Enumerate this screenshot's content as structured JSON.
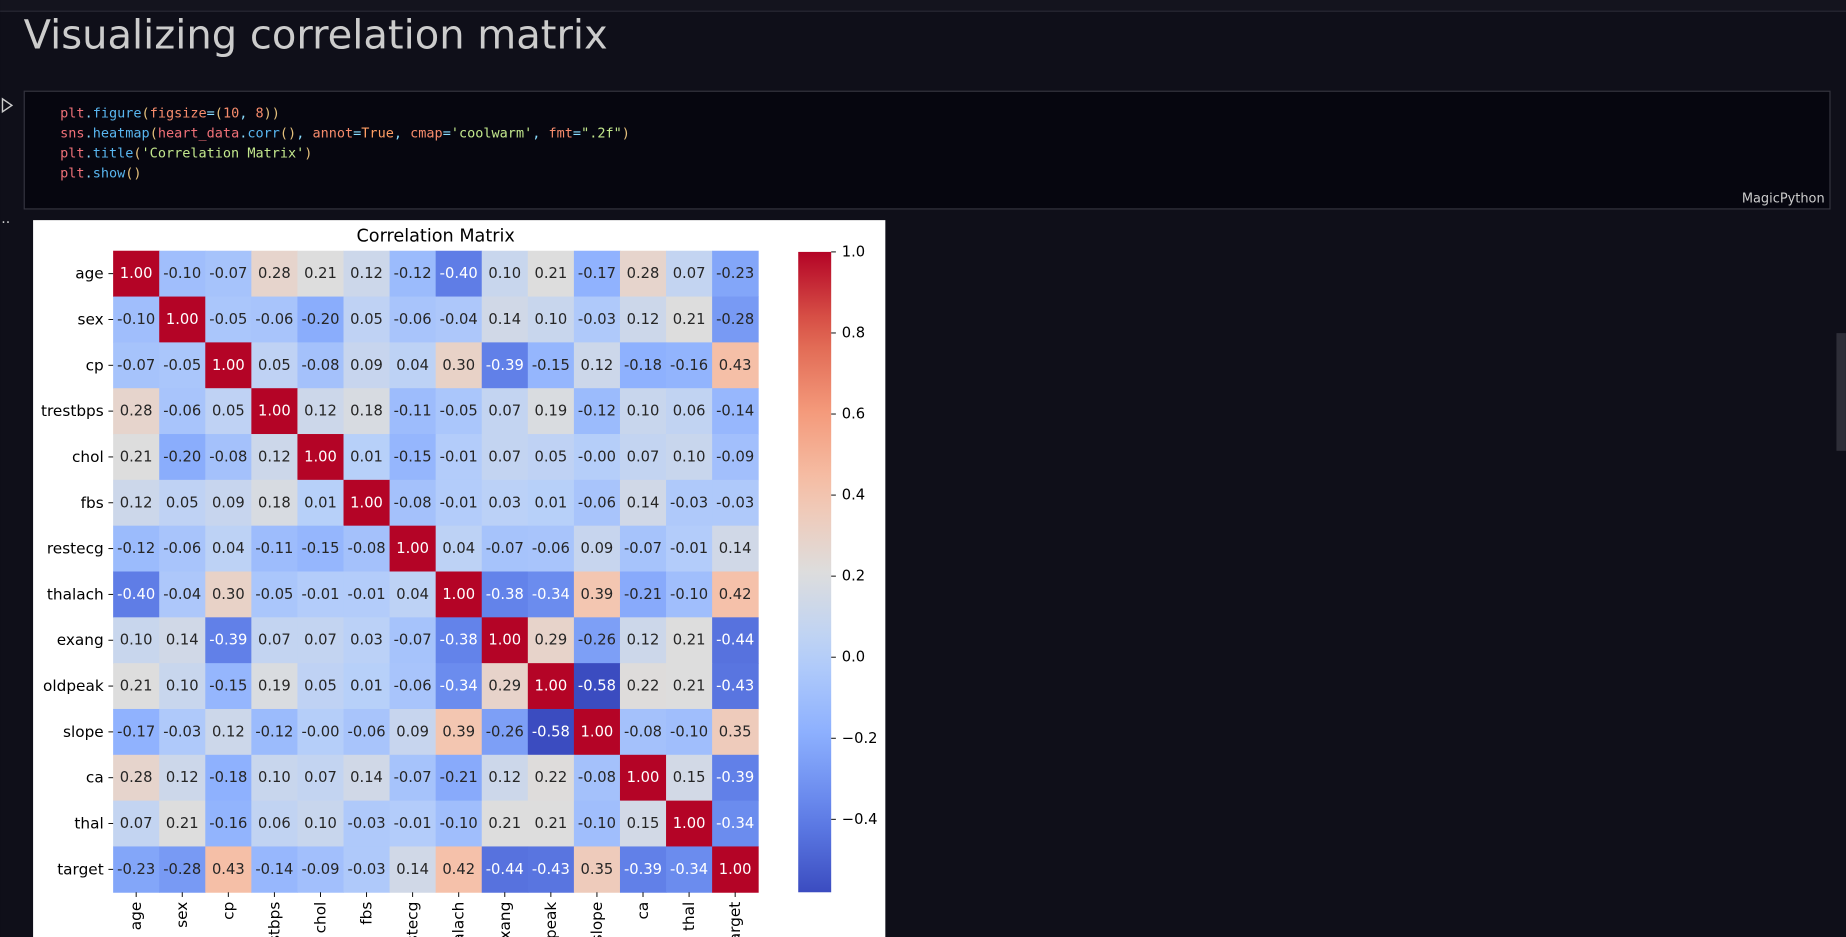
{
  "notebook": {
    "heading": "Visualizing correlation matrix",
    "cell": {
      "lines": [
        "plt.figure(figsize=(10, 8))",
        "sns.heatmap(heart_data.corr(), annot=True, cmap='coolwarm', fmt=\".2f\")",
        "plt.title('Correlation Matrix')",
        "plt.show()"
      ],
      "language": "MagicPython"
    }
  },
  "chart_data": {
    "type": "heatmap",
    "title": "Correlation Matrix",
    "cmap": "coolwarm",
    "categories": [
      "age",
      "sex",
      "cp",
      "trestbps",
      "chol",
      "fbs",
      "restecg",
      "thalach",
      "exang",
      "oldpeak",
      "slope",
      "ca",
      "thal",
      "target"
    ],
    "rows": [
      {
        "values": [
          1.0,
          -0.1,
          -0.07,
          0.28,
          0.21,
          0.12,
          -0.12,
          -0.4,
          0.1,
          0.21,
          -0.17,
          0.28,
          0.07,
          -0.23
        ],
        "value_labels": [
          "1.00",
          "-0.10",
          "-0.07",
          "0.28",
          "0.21",
          "0.12",
          "-0.12",
          "-0.40",
          "0.10",
          "0.21",
          "-0.17",
          "0.28",
          "0.07",
          "-0.23"
        ]
      },
      {
        "values": [
          -0.1,
          1.0,
          -0.05,
          -0.06,
          -0.2,
          0.05,
          -0.06,
          -0.04,
          0.14,
          0.1,
          -0.03,
          0.12,
          0.21,
          -0.28
        ],
        "value_labels": [
          "-0.10",
          "1.00",
          "-0.05",
          "-0.06",
          "-0.20",
          "0.05",
          "-0.06",
          "-0.04",
          "0.14",
          "0.10",
          "-0.03",
          "0.12",
          "0.21",
          "-0.28"
        ]
      },
      {
        "values": [
          -0.07,
          -0.05,
          1.0,
          0.05,
          -0.08,
          0.09,
          0.04,
          0.3,
          -0.39,
          -0.15,
          0.12,
          -0.18,
          -0.16,
          0.43
        ],
        "value_labels": [
          "-0.07",
          "-0.05",
          "1.00",
          "0.05",
          "-0.08",
          "0.09",
          "0.04",
          "0.30",
          "-0.39",
          "-0.15",
          "0.12",
          "-0.18",
          "-0.16",
          "0.43"
        ]
      },
      {
        "values": [
          0.28,
          -0.06,
          0.05,
          1.0,
          0.12,
          0.18,
          -0.11,
          -0.05,
          0.07,
          0.19,
          -0.12,
          0.1,
          0.06,
          -0.14
        ],
        "value_labels": [
          "0.28",
          "-0.06",
          "0.05",
          "1.00",
          "0.12",
          "0.18",
          "-0.11",
          "-0.05",
          "0.07",
          "0.19",
          "-0.12",
          "0.10",
          "0.06",
          "-0.14"
        ]
      },
      {
        "values": [
          0.21,
          -0.2,
          -0.08,
          0.12,
          1.0,
          0.01,
          -0.15,
          -0.01,
          0.07,
          0.05,
          -0.0,
          0.07,
          0.1,
          -0.09
        ],
        "value_labels": [
          "0.21",
          "-0.20",
          "-0.08",
          "0.12",
          "1.00",
          "0.01",
          "-0.15",
          "-0.01",
          "0.07",
          "0.05",
          "-0.00",
          "0.07",
          "0.10",
          "-0.09"
        ]
      },
      {
        "values": [
          0.12,
          0.05,
          0.09,
          0.18,
          0.01,
          1.0,
          -0.08,
          -0.01,
          0.03,
          0.01,
          -0.06,
          0.14,
          -0.03,
          -0.03
        ],
        "value_labels": [
          "0.12",
          "0.05",
          "0.09",
          "0.18",
          "0.01",
          "1.00",
          "-0.08",
          "-0.01",
          "0.03",
          "0.01",
          "-0.06",
          "0.14",
          "-0.03",
          "-0.03"
        ]
      },
      {
        "values": [
          -0.12,
          -0.06,
          0.04,
          -0.11,
          -0.15,
          -0.08,
          1.0,
          0.04,
          -0.07,
          -0.06,
          0.09,
          -0.07,
          -0.01,
          0.14
        ],
        "value_labels": [
          "-0.12",
          "-0.06",
          "0.04",
          "-0.11",
          "-0.15",
          "-0.08",
          "1.00",
          "0.04",
          "-0.07",
          "-0.06",
          "0.09",
          "-0.07",
          "-0.01",
          "0.14"
        ]
      },
      {
        "values": [
          -0.4,
          -0.04,
          0.3,
          -0.05,
          -0.01,
          -0.01,
          0.04,
          1.0,
          -0.38,
          -0.34,
          0.39,
          -0.21,
          -0.1,
          0.42
        ],
        "value_labels": [
          "-0.40",
          "-0.04",
          "0.30",
          "-0.05",
          "-0.01",
          "-0.01",
          "0.04",
          "1.00",
          "-0.38",
          "-0.34",
          "0.39",
          "-0.21",
          "-0.10",
          "0.42"
        ]
      },
      {
        "values": [
          0.1,
          0.14,
          -0.39,
          0.07,
          0.07,
          0.03,
          -0.07,
          -0.38,
          1.0,
          0.29,
          -0.26,
          0.12,
          0.21,
          -0.44
        ],
        "value_labels": [
          "0.10",
          "0.14",
          "-0.39",
          "0.07",
          "0.07",
          "0.03",
          "-0.07",
          "-0.38",
          "1.00",
          "0.29",
          "-0.26",
          "0.12",
          "0.21",
          "-0.44"
        ]
      },
      {
        "values": [
          0.21,
          0.1,
          -0.15,
          0.19,
          0.05,
          0.01,
          -0.06,
          -0.34,
          0.29,
          1.0,
          -0.58,
          0.22,
          0.21,
          -0.43
        ],
        "value_labels": [
          "0.21",
          "0.10",
          "-0.15",
          "0.19",
          "0.05",
          "0.01",
          "-0.06",
          "-0.34",
          "0.29",
          "1.00",
          "-0.58",
          "0.22",
          "0.21",
          "-0.43"
        ]
      },
      {
        "values": [
          -0.17,
          -0.03,
          0.12,
          -0.12,
          -0.0,
          -0.06,
          0.09,
          0.39,
          -0.26,
          -0.58,
          1.0,
          -0.08,
          -0.1,
          0.35
        ],
        "value_labels": [
          "-0.17",
          "-0.03",
          "0.12",
          "-0.12",
          "-0.00",
          "-0.06",
          "0.09",
          "0.39",
          "-0.26",
          "-0.58",
          "1.00",
          "-0.08",
          "-0.10",
          "0.35"
        ]
      },
      {
        "values": [
          0.28,
          0.12,
          -0.18,
          0.1,
          0.07,
          0.14,
          -0.07,
          -0.21,
          0.12,
          0.22,
          -0.08,
          1.0,
          0.15,
          -0.39
        ],
        "value_labels": [
          "0.28",
          "0.12",
          "-0.18",
          "0.10",
          "0.07",
          "0.14",
          "-0.07",
          "-0.21",
          "0.12",
          "0.22",
          "-0.08",
          "1.00",
          "0.15",
          "-0.39"
        ]
      },
      {
        "values": [
          0.07,
          0.21,
          -0.16,
          0.06,
          0.1,
          -0.03,
          -0.01,
          -0.1,
          0.21,
          0.21,
          -0.1,
          0.15,
          1.0,
          -0.34
        ],
        "value_labels": [
          "0.07",
          "0.21",
          "-0.16",
          "0.06",
          "0.10",
          "-0.03",
          "-0.01",
          "-0.10",
          "0.21",
          "0.21",
          "-0.10",
          "0.15",
          "1.00",
          "-0.34"
        ]
      },
      {
        "values": [
          -0.23,
          -0.28,
          0.43,
          -0.14,
          -0.09,
          -0.03,
          0.14,
          0.42,
          -0.44,
          -0.43,
          0.35,
          -0.39,
          -0.34,
          1.0
        ],
        "value_labels": [
          "-0.23",
          "-0.28",
          "0.43",
          "-0.14",
          "-0.09",
          "-0.03",
          "0.14",
          "0.42",
          "-0.44",
          "-0.43",
          "0.35",
          "-0.39",
          "-0.34",
          "1.00"
        ]
      }
    ],
    "clim": [
      -0.58,
      1.0
    ],
    "cticks": [
      {
        "value": -0.4,
        "label": "−0.4"
      },
      {
        "value": -0.2,
        "label": "−0.2"
      },
      {
        "value": 0,
        "label": "0.0"
      },
      {
        "value": 0.2,
        "label": "0.2"
      },
      {
        "value": 0.4,
        "label": "0.4"
      },
      {
        "value": 0.6,
        "label": "0.6"
      },
      {
        "value": 0.8,
        "label": "0.8"
      },
      {
        "value": 1,
        "label": "1.0"
      }
    ]
  }
}
